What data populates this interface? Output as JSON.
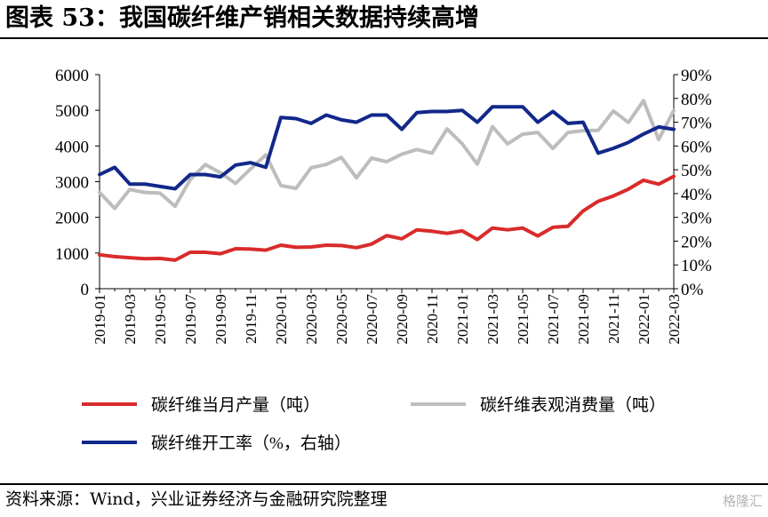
{
  "title": "图表 53：我国碳纤维产销相关数据持续高增",
  "source": "资料来源：Wind，兴业证券经济与金融研究院整理",
  "watermark": "格隆汇",
  "colors": {
    "production": "#d92b2b",
    "consumption": "#bdbdbd",
    "utilization": "#12288a",
    "axis": "#000000"
  },
  "chart_data": {
    "type": "line",
    "x_tick_labels": [
      "2019-01",
      "2019-03",
      "2019-05",
      "2019-07",
      "2019-09",
      "2019-11",
      "2020-01",
      "2020-03",
      "2020-05",
      "2020-07",
      "2020-09",
      "2020-11",
      "2021-01",
      "2021-03",
      "2021-05",
      "2021-07",
      "2021-09",
      "2021-11",
      "2022-01",
      "2022-03"
    ],
    "x": [
      "2019-01",
      "2019-02",
      "2019-03",
      "2019-04",
      "2019-05",
      "2019-06",
      "2019-07",
      "2019-08",
      "2019-09",
      "2019-10",
      "2019-11",
      "2019-12",
      "2020-01",
      "2020-02",
      "2020-03",
      "2020-04",
      "2020-05",
      "2020-06",
      "2020-07",
      "2020-08",
      "2020-09",
      "2020-10",
      "2020-11",
      "2020-12",
      "2021-01",
      "2021-02",
      "2021-03",
      "2021-04",
      "2021-05",
      "2021-06",
      "2021-07",
      "2021-08",
      "2021-09",
      "2021-10",
      "2021-11",
      "2021-12",
      "2022-01",
      "2022-02",
      "2022-03"
    ],
    "y_left": {
      "ticks": [
        "0",
        "1000",
        "2000",
        "3000",
        "4000",
        "5000",
        "6000"
      ],
      "range": [
        0,
        6000
      ]
    },
    "y_right": {
      "ticks": [
        "0%",
        "10%",
        "20%",
        "30%",
        "40%",
        "50%",
        "60%",
        "70%",
        "80%",
        "90%"
      ],
      "range": [
        0,
        90
      ]
    },
    "grid": false,
    "legend_position": "bottom",
    "series": [
      {
        "name": "碳纤维当月产量（吨）",
        "axis": "left",
        "color_key": "production",
        "values": [
          950,
          900,
          870,
          840,
          850,
          800,
          1020,
          1020,
          980,
          1120,
          1110,
          1080,
          1220,
          1160,
          1170,
          1220,
          1210,
          1150,
          1250,
          1490,
          1400,
          1650,
          1610,
          1550,
          1620,
          1380,
          1700,
          1650,
          1700,
          1480,
          1720,
          1750,
          2180,
          2450,
          2600,
          2790,
          3040,
          2930,
          3150
        ]
      },
      {
        "name": "碳纤维表观消费量（吨）",
        "axis": "left",
        "color_key": "consumption",
        "values": [
          2700,
          2250,
          2780,
          2700,
          2680,
          2310,
          3060,
          3480,
          3250,
          2950,
          3360,
          3750,
          2890,
          2810,
          3390,
          3480,
          3680,
          3110,
          3660,
          3560,
          3770,
          3900,
          3800,
          4480,
          4060,
          3490,
          4540,
          4060,
          4330,
          4380,
          3930,
          4380,
          4430,
          4440,
          4980,
          4660,
          5270,
          4180,
          5000
        ]
      },
      {
        "name": "碳纤维开工率（%，右轴）",
        "axis": "right",
        "color_key": "utilization",
        "values": [
          48,
          51,
          44,
          44,
          43,
          42,
          48,
          48,
          47,
          52,
          53,
          51,
          72,
          71.5,
          69.5,
          73,
          71,
          70,
          73,
          73,
          67,
          74,
          74.5,
          74.5,
          75,
          70,
          76.5,
          76.5,
          76.5,
          70,
          74.5,
          69.5,
          70,
          57,
          59,
          61.5,
          65,
          68,
          67
        ]
      }
    ]
  }
}
